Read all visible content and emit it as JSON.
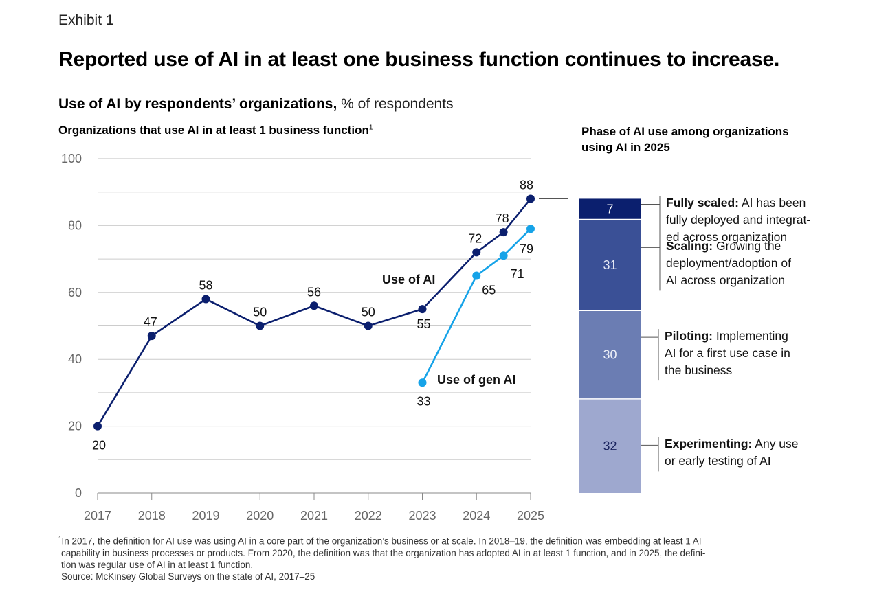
{
  "exhibit_label": "Exhibit 1",
  "title": "Reported use of AI in at least one business function continues to increase.",
  "subtitle_bold": "Use of AI by respondents’ organizations,",
  "subtitle_normal": " % of respondents",
  "left_heading": "Organizations that use AI in at least 1 business function",
  "left_heading_sup": "1",
  "right_heading_line1": "Phase of AI use among organizations",
  "right_heading_line2": "using AI in 2025",
  "colors": {
    "use_of_ai": "#0b1f6e",
    "gen_ai": "#16a3e8",
    "grid": "#cccccc",
    "axis_text": "#666666",
    "phase_fully_scaled": "#0b1f6e",
    "phase_scaling": "#3a5096",
    "phase_piloting": "#6b7db3",
    "phase_experimenting": "#9ea8cf"
  },
  "chart_data": [
    {
      "type": "line",
      "ylim": [
        0,
        100
      ],
      "yticks": [
        0,
        20,
        40,
        60,
        80,
        100
      ],
      "xticks": [
        "2017",
        "2018",
        "2019",
        "2020",
        "2021",
        "2022",
        "2023",
        "2024",
        "2025"
      ],
      "series": [
        {
          "name": "Use of AI",
          "x": [
            2017,
            2018,
            2019,
            2020,
            2021,
            2022,
            2023,
            2024,
            2024.5,
            2025
          ],
          "values": [
            20,
            47,
            58,
            50,
            56,
            50,
            55,
            72,
            78,
            88
          ],
          "labels": [
            "20",
            "47",
            "58",
            "50",
            "56",
            "50",
            "55",
            "72",
            "78",
            "88"
          ]
        },
        {
          "name": "Use of gen AI",
          "x": [
            2023,
            2024,
            2024.5,
            2025
          ],
          "values": [
            33,
            65,
            71,
            79
          ],
          "labels": [
            "33",
            "65",
            "71",
            "79"
          ]
        }
      ]
    },
    {
      "type": "bar",
      "stacked": true,
      "title": "Phase of AI use among organizations using AI in 2025",
      "total": 88,
      "segments": [
        {
          "name": "Fully scaled",
          "value": 7,
          "label": "7",
          "bold": "Fully scaled:",
          "desc_lines": [
            " AI has been",
            "fully deployed and integrat-",
            "ed across organization"
          ]
        },
        {
          "name": "Scaling",
          "value": 31,
          "label": "31",
          "bold": "Scaling:",
          "desc_lines": [
            " Growing the",
            "deployment/adoption of",
            "AI across organization"
          ]
        },
        {
          "name": "Piloting",
          "value": 30,
          "label": "30",
          "bold": "Piloting:",
          "desc_lines": [
            " Implementing",
            "AI for a first use case in",
            "the business"
          ]
        },
        {
          "name": "Experimenting",
          "value": 32,
          "label": "32",
          "bold": "Experimenting:",
          "desc_lines": [
            " Any use",
            "or early testing of AI"
          ]
        }
      ]
    }
  ],
  "footnote_sup": "1",
  "footnote_lines": [
    "In 2017, the definition for AI use was using AI in a core part of the organization’s business or at scale. In 2018–19, the definition was embedding at least 1 AI",
    "capability in business processes or products. From 2020, the definition was that the organization has adopted AI in at least 1 function, and in 2025, the defini-",
    "tion was regular use of AI in at least 1 function."
  ],
  "source": "Source: McKinsey Global Surveys on the state of AI, 2017–25"
}
